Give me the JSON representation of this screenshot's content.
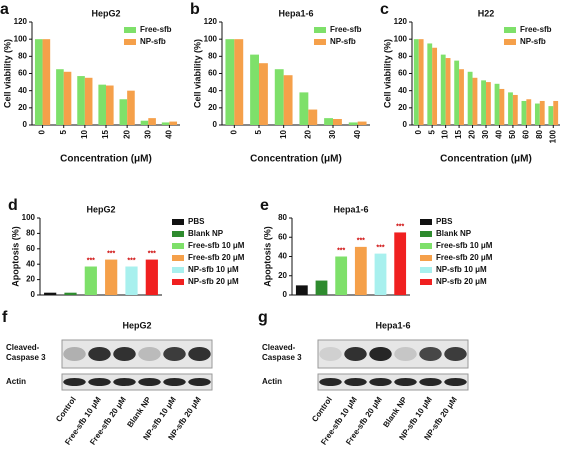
{
  "chart_data": [
    {
      "type": "bar",
      "panel": "a",
      "title": "HepG2",
      "x_label": "Concentration (μM)",
      "y_label": "Cell viability (%)",
      "categories": [
        "0",
        "5",
        "10",
        "15",
        "20",
        "30",
        "40"
      ],
      "series": [
        {
          "name": "Free-sfb",
          "color": "#7ee06a",
          "values": [
            100,
            65,
            57,
            47,
            30,
            5,
            3
          ]
        },
        {
          "name": "NP-sfb",
          "color": "#f5a04a",
          "values": [
            100,
            62,
            55,
            46,
            40,
            8,
            4
          ]
        }
      ],
      "ylim": [
        0,
        120
      ],
      "yticks": [
        0,
        20,
        40,
        60,
        80,
        100,
        120
      ]
    },
    {
      "type": "bar",
      "panel": "b",
      "title": "Hepa1-6",
      "x_label": "Concentration (μM)",
      "y_label": "Cell viability (%)",
      "categories": [
        "0",
        "5",
        "10",
        "20",
        "30",
        "40"
      ],
      "series": [
        {
          "name": "Free-sfb",
          "color": "#7ee06a",
          "values": [
            100,
            82,
            65,
            38,
            8,
            3
          ]
        },
        {
          "name": "NP-sfb",
          "color": "#f5a04a",
          "values": [
            100,
            72,
            58,
            18,
            7,
            4
          ]
        }
      ],
      "ylim": [
        0,
        120
      ],
      "yticks": [
        0,
        20,
        40,
        60,
        80,
        100,
        120
      ]
    },
    {
      "type": "bar",
      "panel": "c",
      "title": "H22",
      "x_label": "Concentration (μM)",
      "y_label": "Cell viability (%)",
      "categories": [
        "0",
        "5",
        "10",
        "15",
        "20",
        "30",
        "40",
        "50",
        "60",
        "80",
        "100"
      ],
      "series": [
        {
          "name": "Free-sfb",
          "color": "#7ee06a",
          "values": [
            100,
            95,
            82,
            75,
            62,
            52,
            48,
            38,
            28,
            25,
            22
          ]
        },
        {
          "name": "NP-sfb",
          "color": "#f5a04a",
          "values": [
            100,
            90,
            78,
            65,
            55,
            50,
            42,
            35,
            30,
            28,
            28
          ]
        }
      ],
      "ylim": [
        0,
        120
      ],
      "yticks": [
        0,
        20,
        40,
        60,
        80,
        100,
        120
      ]
    },
    {
      "type": "bar",
      "panel": "d",
      "title": "HepG2",
      "y_label": "Apoptosis (%)",
      "categories": [
        "PBS",
        "Blank NP",
        "Free-sfb 10 μM",
        "Free-sfb 20 μM",
        "NP-sfb 10 μM",
        "NP-sfb 20 μM"
      ],
      "colors": [
        "#111111",
        "#2e8b2e",
        "#7ee06a",
        "#f5a04a",
        "#a8f0ee",
        "#f02020"
      ],
      "values": [
        3,
        3,
        37,
        46,
        37,
        46
      ],
      "significance": [
        null,
        null,
        "***",
        "***",
        "***",
        "***"
      ],
      "ylim": [
        0,
        100
      ],
      "yticks": [
        0,
        20,
        40,
        60,
        80,
        100
      ]
    },
    {
      "type": "bar",
      "panel": "e",
      "title": "Hepa1-6",
      "y_label": "Apoptosis (%)",
      "categories": [
        "PBS",
        "Blank NP",
        "Free-sfb 10 μM",
        "Free-sfb 20 μM",
        "NP-sfb 10 μM",
        "NP-sfb 20 μM"
      ],
      "colors": [
        "#111111",
        "#2e8b2e",
        "#7ee06a",
        "#f5a04a",
        "#a8f0ee",
        "#f02020"
      ],
      "values": [
        10,
        15,
        40,
        50,
        43,
        65
      ],
      "significance": [
        null,
        null,
        "***",
        "***",
        "***",
        "***"
      ],
      "ylim": [
        0,
        80
      ],
      "yticks": [
        0,
        20,
        40,
        60,
        80
      ]
    }
  ],
  "blots": [
    {
      "panel": "f",
      "title": "HepG2",
      "rows": [
        [
          "Cleaved-",
          "Caspase 3"
        ],
        [
          "Actin"
        ]
      ],
      "lanes": [
        "Control",
        "Free-sfb 10 μM",
        "Free-sfb 20 μM",
        "Blank NP",
        "NP-sfb 10 μM",
        "NP-sfb 20 μM"
      ]
    },
    {
      "panel": "g",
      "title": "Hepa1-6",
      "rows": [
        [
          "Cleaved-",
          "Caspase 3"
        ],
        [
          "Actin"
        ]
      ],
      "lanes": [
        "Control",
        "Free-sfb 10 μM",
        "Free-sfb 20 μM",
        "Blank NP",
        "NP-sfb 10 μM",
        "NP-sfb 20 μM"
      ]
    }
  ]
}
